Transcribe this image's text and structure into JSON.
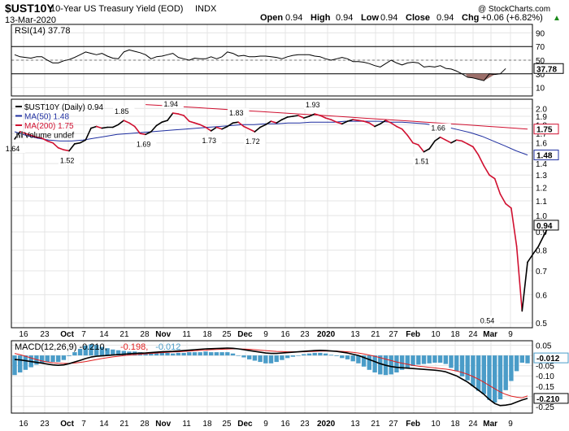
{
  "header": {
    "symbol": "$UST10Y",
    "description": "10-Year US Treasury Yield (EOD)",
    "exchange": "INDX",
    "date": "13-Mar-2020",
    "copyright": "@ StockCharts.com",
    "ohlc": [
      {
        "label": "Open",
        "value": "0.94"
      },
      {
        "label": "High",
        "value": "0.94"
      },
      {
        "label": "Low",
        "value": "0.94"
      },
      {
        "label": "Close",
        "value": "0.94"
      },
      {
        "label": "Chg",
        "value": "+0.06 (+6.82%)"
      }
    ],
    "chg_arrow": "▲"
  },
  "colors": {
    "price": "#000000",
    "ma50": "#1f2fa0",
    "ma200": "#d01030",
    "rsi_fill": "#9c6f6a",
    "macd_hist": "#4a9cc8",
    "macd_signal": "#e02020",
    "grid": "#e4e4e4",
    "panel_border": "#000000"
  },
  "chart_data": [
    {
      "type": "line",
      "id": "rsi",
      "legend": "RSI(14) 37.78",
      "last_value": "37.78",
      "ylim": [
        0,
        100
      ],
      "ticks": [
        "10",
        "30",
        "50",
        "70",
        "90"
      ],
      "reference_lines": [
        30,
        70
      ],
      "series": [
        {
          "name": "RSI(14)",
          "values": [
            58,
            55,
            54,
            53,
            55,
            55,
            50,
            46,
            46,
            49,
            51,
            54,
            58,
            62,
            60,
            58,
            60,
            56,
            53,
            52,
            62,
            65,
            63,
            61,
            58,
            52,
            55,
            56,
            58,
            60,
            54,
            52,
            50,
            53,
            52,
            52,
            55,
            52,
            55,
            62,
            60,
            56,
            57,
            55,
            55,
            56,
            56,
            55,
            54,
            52,
            55,
            57,
            58,
            58,
            58,
            56,
            55,
            52,
            50,
            52,
            54,
            52,
            48,
            48,
            47,
            45,
            42,
            40,
            45,
            50,
            46,
            43,
            46,
            47,
            46,
            40,
            41,
            40,
            42,
            38,
            37,
            34,
            30,
            25,
            24,
            22,
            20,
            30,
            29,
            30,
            37.78
          ]
        }
      ]
    },
    {
      "type": "line",
      "id": "price",
      "legend": [
        {
          "key": "price",
          "text": "$UST10Y (Daily) 0.94"
        },
        {
          "key": "ma50",
          "text": "MA(50) 1.48"
        },
        {
          "key": "ma200",
          "text": "MA(200) 1.75"
        },
        {
          "key": "volume",
          "text": "Volume undef"
        }
      ],
      "scale": "log",
      "ylim": [
        0.5,
        2.1
      ],
      "ticks": [
        "0.5",
        "0.6",
        "0.7",
        "0.8",
        "0.9",
        "1.0",
        "1.1",
        "1.2",
        "1.3",
        "1.4",
        "1.5",
        "1.6",
        "1.7",
        "1.8",
        "1.9",
        "2.0"
      ],
      "x_labels": [
        "16",
        "23",
        "Oct",
        "7",
        "14",
        "21",
        "28",
        "Nov",
        "11",
        "18",
        "25",
        "Dec",
        "9",
        "16",
        "23",
        "2020",
        "13",
        "21",
        "27",
        "Feb",
        "10",
        "18",
        "24",
        "Mar",
        "9"
      ],
      "last_labels": [
        {
          "key": "price",
          "value": "0.94"
        },
        {
          "key": "ma200",
          "value": "1.75"
        },
        {
          "key": "ma50",
          "value": "1.48"
        }
      ],
      "annotations": [
        {
          "label": "1.64",
          "index": 0,
          "value": 1.64
        },
        {
          "label": "1.52",
          "index": 10,
          "value": 1.52
        },
        {
          "label": "1.85",
          "index": 20,
          "value": 1.85
        },
        {
          "label": "1.69",
          "index": 24,
          "value": 1.69
        },
        {
          "label": "1.94",
          "index": 29,
          "value": 1.94
        },
        {
          "label": "1.73",
          "index": 36,
          "value": 1.73
        },
        {
          "label": "1.83",
          "index": 41,
          "value": 1.83
        },
        {
          "label": "1.72",
          "index": 44,
          "value": 1.72
        },
        {
          "label": "1.93",
          "index": 55,
          "value": 1.93
        },
        {
          "label": "1.51",
          "index": 75,
          "value": 1.51
        },
        {
          "label": "1.66",
          "index": 78,
          "value": 1.66
        },
        {
          "label": "0.54",
          "index": 87,
          "value": 0.54
        }
      ],
      "series": [
        {
          "name": "$UST10Y",
          "values": [
            1.64,
            1.72,
            1.7,
            1.68,
            1.66,
            1.65,
            1.62,
            1.6,
            1.55,
            1.53,
            1.52,
            1.59,
            1.6,
            1.63,
            1.76,
            1.78,
            1.76,
            1.77,
            1.77,
            1.8,
            1.85,
            1.82,
            1.78,
            1.7,
            1.69,
            1.72,
            1.79,
            1.83,
            1.85,
            1.94,
            1.93,
            1.91,
            1.84,
            1.82,
            1.8,
            1.77,
            1.73,
            1.77,
            1.75,
            1.78,
            1.82,
            1.83,
            1.78,
            1.75,
            1.72,
            1.77,
            1.8,
            1.84,
            1.82,
            1.86,
            1.89,
            1.9,
            1.91,
            1.88,
            1.9,
            1.93,
            1.91,
            1.88,
            1.86,
            1.83,
            1.81,
            1.84,
            1.86,
            1.85,
            1.84,
            1.82,
            1.78,
            1.81,
            1.85,
            1.82,
            1.78,
            1.75,
            1.68,
            1.6,
            1.58,
            1.51,
            1.54,
            1.62,
            1.66,
            1.63,
            1.6,
            1.63,
            1.62,
            1.59,
            1.56,
            1.48,
            1.38,
            1.3,
            1.27,
            1.15,
            1.08,
            1.05,
            0.82,
            0.54,
            0.74,
            0.78,
            0.82,
            0.88,
            0.94
          ]
        },
        {
          "name": "MA(50)",
          "values": [
            1.72,
            1.68,
            1.65,
            1.63,
            1.62,
            1.62,
            1.63,
            1.65,
            1.67,
            1.69,
            1.7,
            1.71,
            1.72,
            1.73,
            1.74,
            1.75,
            1.76,
            1.77,
            1.78,
            1.79,
            1.8,
            1.8,
            1.81,
            1.81,
            1.82,
            1.82,
            1.83,
            1.83,
            1.83,
            1.84,
            1.84,
            1.84,
            1.84,
            1.83,
            1.83,
            1.82,
            1.81,
            1.79,
            1.77,
            1.74,
            1.71,
            1.67,
            1.62,
            1.57,
            1.52,
            1.48
          ]
        },
        {
          "name": "MA(200)",
          "values": [
            2.05,
            2.04,
            2.03,
            2.02,
            2.01,
            2.0,
            1.99,
            1.98,
            1.97,
            1.96,
            1.95,
            1.94,
            1.93,
            1.92,
            1.91,
            1.9,
            1.89,
            1.88,
            1.87,
            1.86,
            1.85,
            1.84,
            1.83,
            1.82,
            1.81,
            1.8,
            1.79,
            1.78,
            1.77,
            1.76,
            1.75
          ]
        }
      ]
    },
    {
      "type": "line",
      "id": "macd",
      "legend": [
        {
          "key": "macd",
          "text": "MACD(12,26,9) -0.210"
        },
        {
          "key": "signal",
          "text": "-0.198"
        },
        {
          "key": "hist",
          "text": "-0.012"
        }
      ],
      "ylim": [
        -0.27,
        0.06
      ],
      "ticks": [
        "-0.25",
        "-0.20",
        "-0.15",
        "-0.10",
        "-0.05",
        "0.00",
        "0.05"
      ],
      "last_labels": [
        {
          "key": "hist",
          "value": "-0.012"
        },
        {
          "key": "macd",
          "value": "-0.210"
        }
      ],
      "x_labels": [
        "16",
        "23",
        "Oct",
        "7",
        "14",
        "21",
        "28",
        "Nov",
        "11",
        "18",
        "25",
        "Dec",
        "9",
        "16",
        "23",
        "2020",
        "13",
        "21",
        "27",
        "Feb",
        "10",
        "18",
        "24",
        "Mar",
        "9"
      ],
      "series": [
        {
          "name": "MACD",
          "values": [
            -0.02,
            -0.022,
            -0.026,
            -0.03,
            -0.034,
            -0.038,
            -0.042,
            -0.046,
            -0.048,
            -0.046,
            -0.04,
            -0.032,
            -0.024,
            -0.015,
            -0.008,
            -0.004,
            -0.002,
            0.0,
            0.002,
            0.004,
            0.006,
            0.008,
            0.01,
            0.011,
            0.012,
            0.014,
            0.016,
            0.018,
            0.019,
            0.02,
            0.022,
            0.024,
            0.026,
            0.028,
            0.03,
            0.032,
            0.033,
            0.034,
            0.035,
            0.036,
            0.035,
            0.032,
            0.028,
            0.024,
            0.02,
            0.016,
            0.012,
            0.01,
            0.01,
            0.012,
            0.014,
            0.016,
            0.018,
            0.02,
            0.022,
            0.024,
            0.025,
            0.024,
            0.022,
            0.02,
            0.016,
            0.012,
            0.006,
            0.0,
            -0.01,
            -0.02,
            -0.03,
            -0.04,
            -0.048,
            -0.054,
            -0.058,
            -0.06,
            -0.062,
            -0.064,
            -0.066,
            -0.068,
            -0.07,
            -0.072,
            -0.075,
            -0.08,
            -0.09,
            -0.1,
            -0.115,
            -0.13,
            -0.15,
            -0.17,
            -0.19,
            -0.215,
            -0.235,
            -0.245,
            -0.243,
            -0.238,
            -0.228,
            -0.218,
            -0.21
          ]
        },
        {
          "name": "Signal",
          "values": [
            0.01,
            0.004,
            -0.004,
            -0.012,
            -0.02,
            -0.027,
            -0.032,
            -0.036,
            -0.038,
            -0.039,
            -0.039,
            -0.037,
            -0.034,
            -0.03,
            -0.025,
            -0.02,
            -0.015,
            -0.011,
            -0.007,
            -0.004,
            -0.001,
            0.002,
            0.004,
            0.006,
            0.008,
            0.01,
            0.012,
            0.014,
            0.015,
            0.017,
            0.018,
            0.02,
            0.021,
            0.023,
            0.025,
            0.026,
            0.028,
            0.029,
            0.03,
            0.031,
            0.032,
            0.032,
            0.031,
            0.03,
            0.028,
            0.026,
            0.024,
            0.022,
            0.02,
            0.019,
            0.018,
            0.018,
            0.018,
            0.018,
            0.019,
            0.02,
            0.021,
            0.021,
            0.021,
            0.021,
            0.02,
            0.018,
            0.015,
            0.012,
            0.007,
            0.002,
            -0.004,
            -0.011,
            -0.018,
            -0.025,
            -0.032,
            -0.038,
            -0.043,
            -0.048,
            -0.052,
            -0.055,
            -0.058,
            -0.061,
            -0.064,
            -0.067,
            -0.071,
            -0.076,
            -0.083,
            -0.092,
            -0.103,
            -0.116,
            -0.131,
            -0.147,
            -0.163,
            -0.178,
            -0.19,
            -0.199,
            -0.204,
            -0.207,
            -0.198
          ]
        }
      ]
    }
  ]
}
